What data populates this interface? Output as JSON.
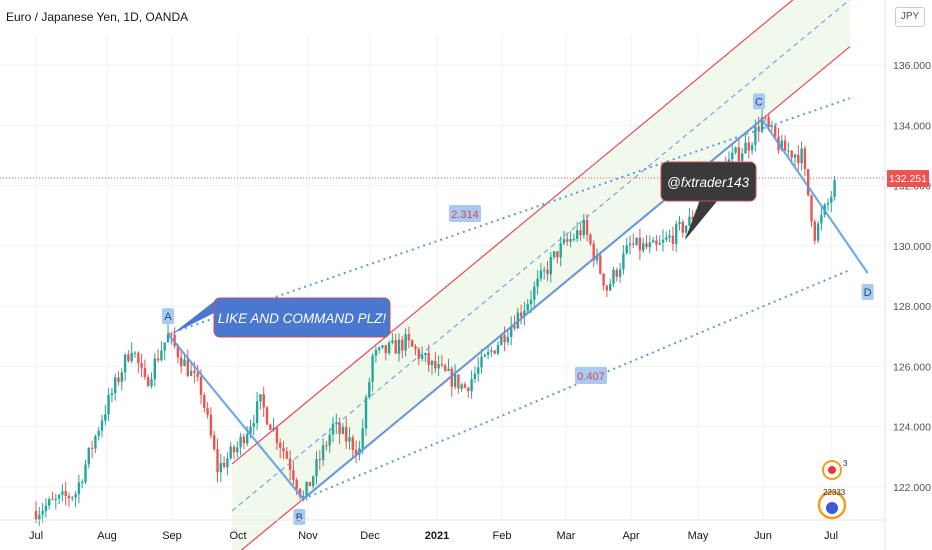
{
  "header": {
    "title": "Euro / Japanese Yen, 1D, OANDA",
    "currency_button": "JPY"
  },
  "chart_data": {
    "type": "candlestick",
    "title": "Euro / Japanese Yen, 1D, OANDA",
    "ylim": [
      120.9,
      137.0
    ],
    "yticks": [
      122.0,
      124.0,
      126.0,
      128.0,
      130.0,
      132.0,
      134.0,
      136.0
    ],
    "ytick_labels": [
      "122.000",
      "124.000",
      "126.000",
      "128.000",
      "130.000",
      "132.000",
      "134.000",
      "136.000"
    ],
    "xticks": [
      "Jul",
      "Aug",
      "Sep",
      "Oct",
      "Nov",
      "Dec",
      "2021",
      "Feb",
      "Mar",
      "Apr",
      "May",
      "Jun",
      "Jul"
    ],
    "last_price": 132.251,
    "last_price_label": "132.251",
    "colors": {
      "up": "#26a69a",
      "down": "#ef5350",
      "channel": "#e8465f",
      "fib": "#5b9be0",
      "price_tag": "#ef5350"
    },
    "wave_points": [
      {
        "label": "A",
        "date": "Sep",
        "price": 127.07
      },
      {
        "label": "B",
        "date": "Nov",
        "price": 121.6
      },
      {
        "label": "C",
        "date": "Jun",
        "price": 134.2
      },
      {
        "label": "D",
        "date": "Jul",
        "price": 129.1
      }
    ],
    "ratio_labels": [
      "2.314",
      "0.407"
    ],
    "annotations": [
      "LIKE AND COMMAND PLZ!",
      "@fxtrader143"
    ],
    "badge_text": [
      "3",
      "22333"
    ]
  }
}
